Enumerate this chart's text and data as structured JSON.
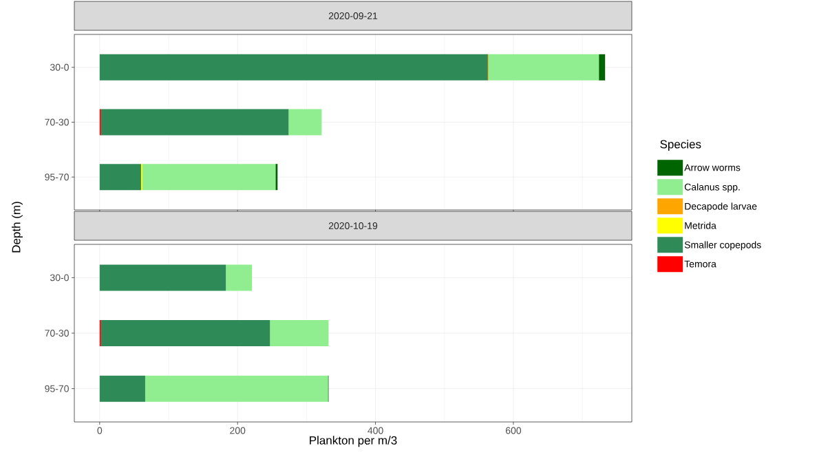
{
  "chart_data": [
    {
      "type": "bar",
      "orientation": "horizontal",
      "stacked": true,
      "title": "2020-09-21",
      "ylabel": "Depth (m)",
      "legend_title": "Species",
      "legend": "right",
      "grid": true,
      "tick_labels": "y",
      "categories": [
        "30-0",
        "70-30",
        "95-70"
      ],
      "xlim": [
        -36.75,
        771.75
      ],
      "xticks": [
        0,
        200,
        400,
        600
      ],
      "series": [
        {
          "name": "Temora",
          "color": "#ff0000",
          "values": [
            0,
            2,
            0
          ]
        },
        {
          "name": "Smaller copepods",
          "color": "#2e8b57",
          "values": [
            563,
            272,
            60
          ]
        },
        {
          "name": "Metrida",
          "color": "#ffff00",
          "values": [
            0,
            0,
            2
          ]
        },
        {
          "name": "Decapode larvae",
          "color": "#ffa500",
          "values": [
            1,
            0,
            0
          ]
        },
        {
          "name": "Calanus spp.",
          "color": "#90ee90",
          "values": [
            160,
            48,
            193
          ]
        },
        {
          "name": "Arrow worms",
          "color": "#006400",
          "values": [
            9,
            0,
            3
          ]
        }
      ]
    },
    {
      "type": "bar",
      "orientation": "horizontal",
      "stacked": true,
      "title": "2020-10-19",
      "xlabel": "Plankton per m/3",
      "grid": true,
      "categories": [
        "30-0",
        "70-30",
        "95-70"
      ],
      "xlim": [
        -36.75,
        771.75
      ],
      "xticks": [
        0,
        200,
        400,
        600
      ],
      "series": [
        {
          "color": "#ff0000",
          "values": [
            0,
            2,
            0
          ]
        },
        {
          "color": "#2e8b57",
          "values": [
            183,
            245,
            66
          ]
        },
        {
          "color": "#ffff00",
          "values": [
            0,
            0,
            0
          ]
        },
        {
          "color": "#ffa500",
          "values": [
            0,
            0,
            0
          ]
        },
        {
          "color": "#90ee90",
          "values": [
            38,
            85,
            265
          ]
        },
        {
          "color": "#006400",
          "values": [
            0,
            0,
            1
          ]
        }
      ]
    }
  ]
}
